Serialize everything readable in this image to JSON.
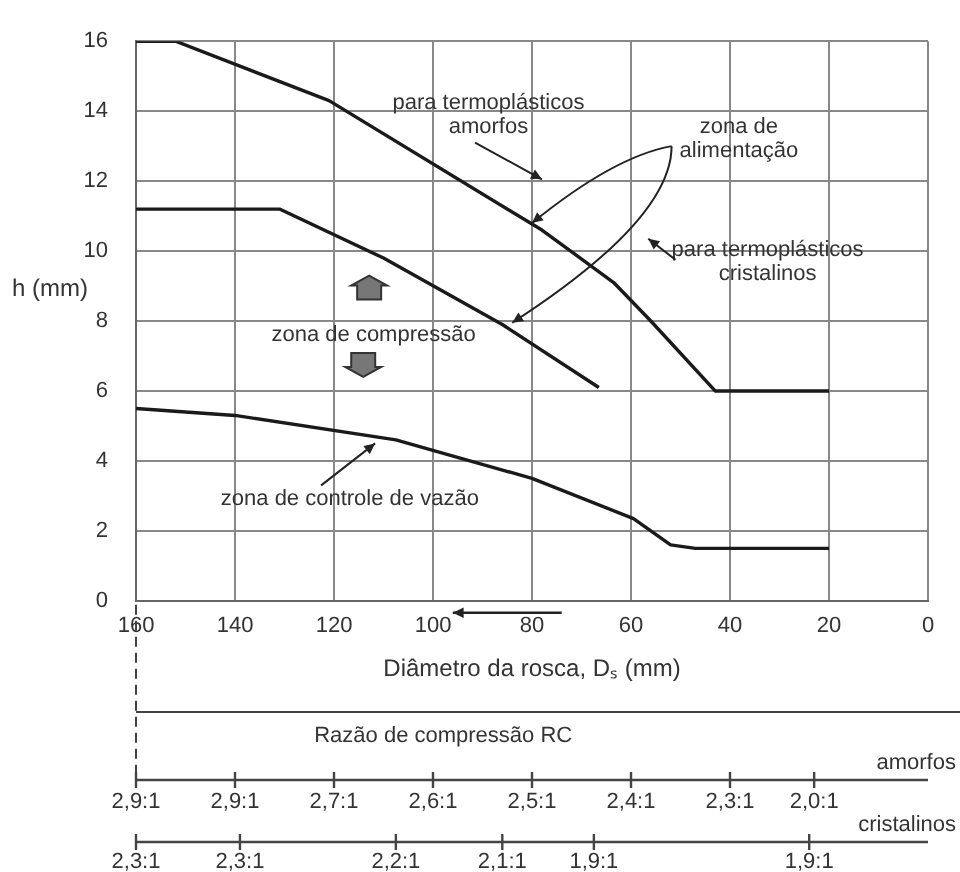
{
  "chart_data": {
    "type": "line",
    "xlabel": "Diâmetro da rosca, Dₛ (mm)",
    "ylabel": "h (mm)",
    "xlim": [
      160,
      0
    ],
    "xticks": [
      160,
      140,
      120,
      100,
      80,
      60,
      40,
      20,
      0
    ],
    "ylim": [
      0,
      16
    ],
    "yticks": [
      0,
      2,
      4,
      6,
      8,
      10,
      12,
      14,
      16
    ],
    "series": [
      {
        "color": "#1a1a1a",
        "x": [
          160,
          152,
          121,
          78,
          63.5,
          56,
          43,
          20
        ],
        "values": [
          16,
          16,
          14.3,
          10.6,
          9.1,
          8,
          6,
          6
        ]
      },
      {
        "color": "#1a1a1a",
        "x": [
          160,
          131,
          110,
          86,
          66.5
        ],
        "values": [
          11.2,
          11.2,
          9.8,
          7.9,
          6.1
        ]
      },
      {
        "color": "#1a1a1a",
        "x": [
          160,
          140,
          107.5,
          80,
          59.5,
          52,
          47,
          20
        ],
        "values": [
          5.5,
          5.3,
          4.6,
          3.5,
          2.35,
          1.6,
          1.5,
          1.5
        ]
      }
    ],
    "annotations": [
      "para termoplásticos\namorfos",
      {
        "text": "zona de\nalimentação",
        "x": 80,
        "y": 10.8
      },
      "para termoplásticos\ncristalinos",
      "zona de compressão",
      "zona de controle de vazão",
      "Razão de compressão RC",
      "amorfos",
      "2,9:1",
      "2,9:1",
      "2,7:1",
      "2,6:1",
      "2,5:1",
      "2,4:1",
      "2,3:1",
      "2,0:1",
      "cristalinos",
      "2,3:1",
      "2,3:1",
      "2,2:1",
      "2,1:1",
      "1,9:1",
      "1,9:1"
    ],
    "grid": true,
    "legend": false,
    "marker": "none",
    "line_style": "solid"
  }
}
